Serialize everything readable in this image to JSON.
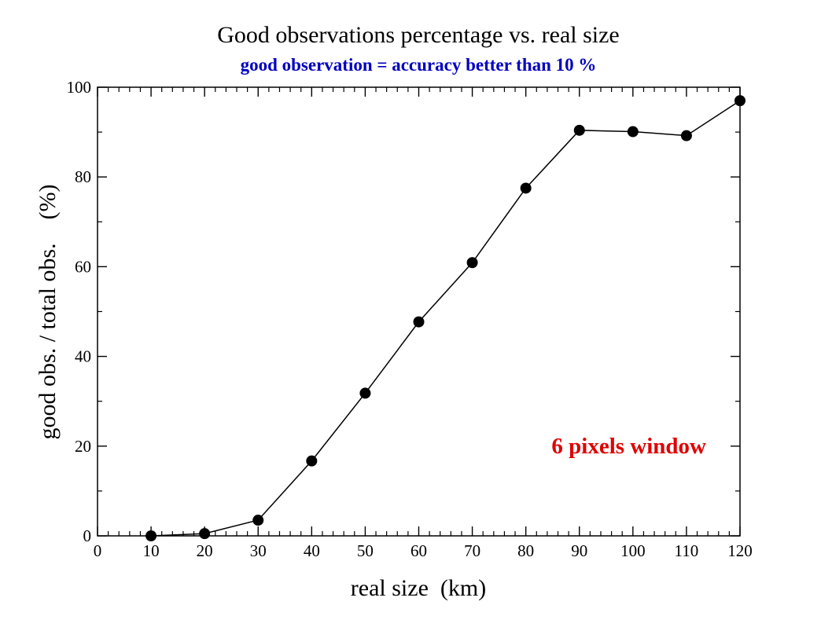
{
  "chart_data": {
    "type": "line",
    "title": "Good observations percentage vs. real size",
    "subtitle": "good observation = accuracy better than 10 %",
    "xlabel": "real size  (km)",
    "ylabel": "good obs. / total obs.    (%)",
    "annotation": "6 pixels window",
    "xlim": [
      0,
      120
    ],
    "ylim": [
      0,
      100
    ],
    "x_major_ticks": [
      0,
      10,
      20,
      30,
      40,
      50,
      60,
      70,
      80,
      90,
      100,
      110,
      120
    ],
    "x_minor_step": 2,
    "y_major_ticks": [
      0,
      20,
      40,
      60,
      80,
      100
    ],
    "y_minor_step": 10,
    "grid": false,
    "series": [
      {
        "x": [
          10,
          20,
          30,
          40,
          50,
          60,
          70,
          80,
          90,
          100,
          110,
          120
        ],
        "y": [
          0,
          0.5,
          3.5,
          16.7,
          31.8,
          47.7,
          60.9,
          77.5,
          90.4,
          90.1,
          89.2,
          97.0
        ],
        "color": "#000000",
        "marker": "circle"
      }
    ]
  },
  "colors": {
    "title": "#000000",
    "subtitle": "#0000c0",
    "annotation": "#e00000",
    "line": "#000000"
  }
}
